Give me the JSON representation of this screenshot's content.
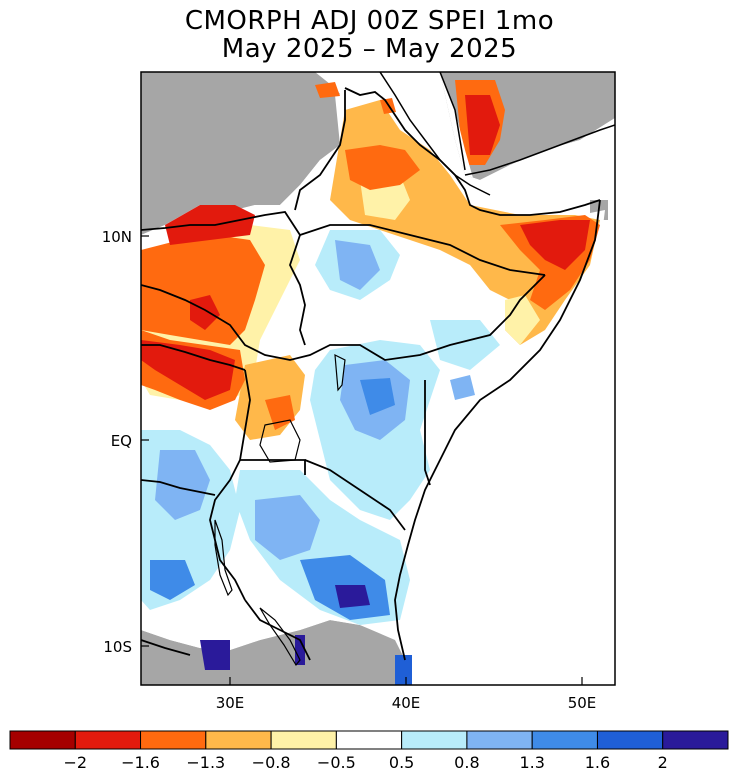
{
  "title": {
    "line1": "CMORPH ADJ 00Z SPEI 1mo",
    "line2": "May 2025 – May 2025"
  },
  "axes": {
    "x_ticks": [
      "30E",
      "40E",
      "50E"
    ],
    "y_ticks": [
      "10N",
      "EQ",
      "10S"
    ],
    "lon_range": [
      25,
      52
    ],
    "lat_range": [
      -12,
      18
    ]
  },
  "colorbar": {
    "labels": [
      "−2",
      "−1.6",
      "−1.3",
      "−0.8",
      "−0.5",
      "0.5",
      "0.8",
      "1.3",
      "1.6",
      "2"
    ],
    "colors": [
      "#a50000",
      "#e21a0d",
      "#ff6a10",
      "#ffb84a",
      "#fff2a8",
      "#ffffff",
      "#b8ecfa",
      "#7fb4f3",
      "#3f8be8",
      "#1f5fd6",
      "#2a1a9a"
    ]
  },
  "colors": {
    "no_data": "#a6a6a6",
    "ocean": "#ffffff",
    "border": "#000000"
  }
}
